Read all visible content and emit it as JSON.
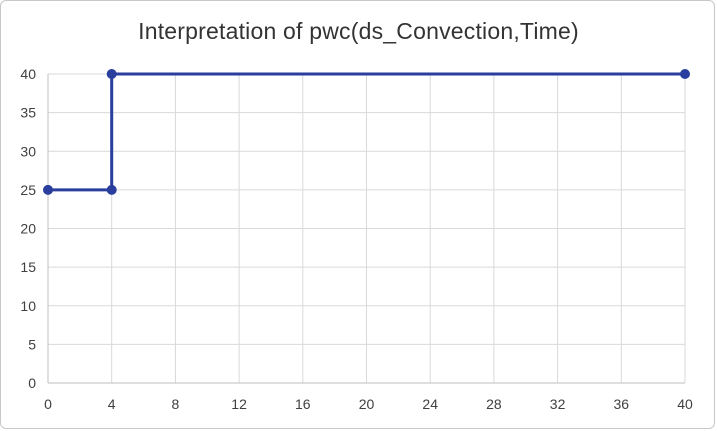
{
  "chart_data": {
    "type": "line",
    "title": "Interpretation of pwc(ds_Convection,Time)",
    "xlabel": "",
    "ylabel": "",
    "xlim": [
      0,
      40
    ],
    "ylim": [
      0,
      40
    ],
    "x_ticks": [
      0,
      4,
      8,
      12,
      16,
      20,
      24,
      28,
      32,
      36,
      40
    ],
    "y_ticks": [
      0,
      5,
      10,
      15,
      20,
      25,
      30,
      35,
      40
    ],
    "grid": true,
    "legend": "none",
    "series": [
      {
        "color": "#2a3e9e",
        "x": [
          0,
          4,
          4,
          40
        ],
        "y": [
          25,
          25,
          40,
          40
        ]
      }
    ]
  }
}
